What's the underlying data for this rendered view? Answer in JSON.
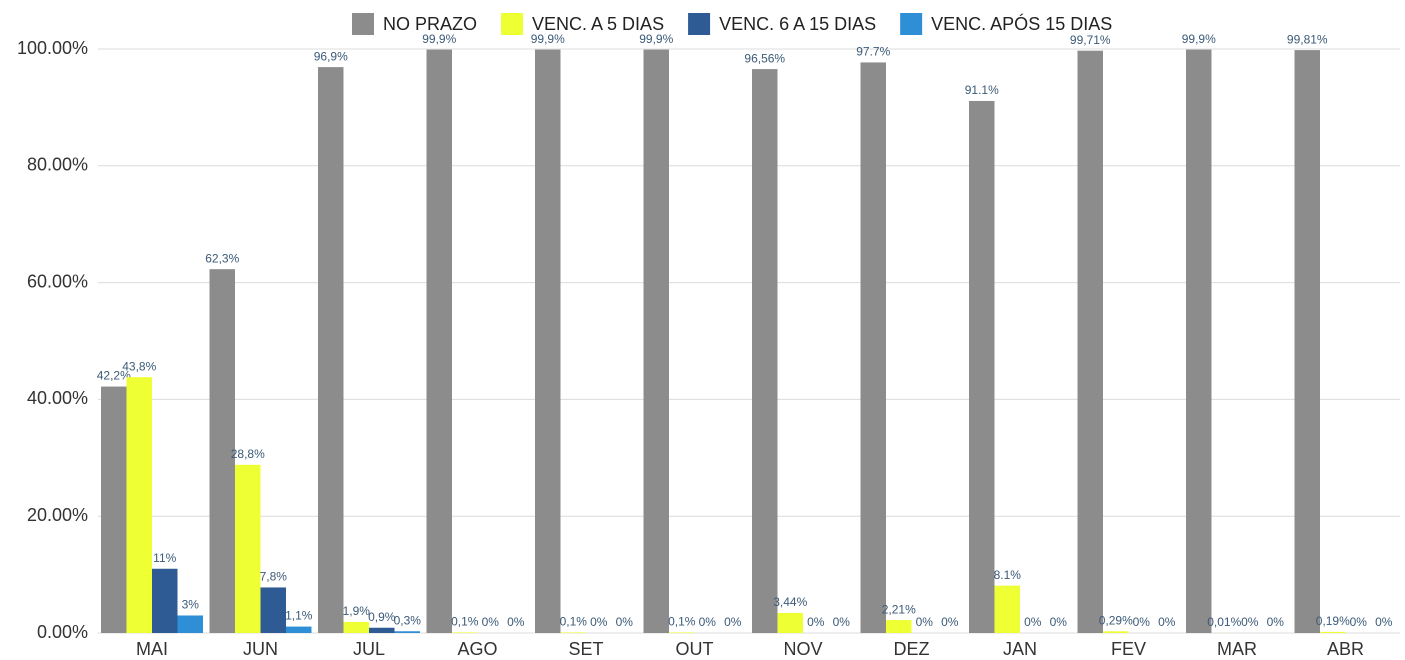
{
  "chart_data": {
    "type": "bar",
    "categories": [
      "MAI",
      "JUN",
      "JUL",
      "AGO",
      "SET",
      "OUT",
      "NOV",
      "DEZ",
      "JAN",
      "FEV",
      "MAR",
      "ABR"
    ],
    "series": [
      {
        "name": "NO PRAZO",
        "color": "#8c8c8c",
        "values": [
          42.2,
          62.3,
          96.9,
          99.9,
          99.9,
          99.9,
          96.56,
          97.7,
          91.1,
          99.71,
          99.9,
          99.81
        ],
        "value_labels": [
          "42,2%",
          "62,3%",
          "96,9%",
          "99,9%",
          "99,9%",
          "99,9%",
          "96,56%",
          "97.7%",
          "91.1%",
          "99,71%",
          "99,9%",
          "99,81%"
        ]
      },
      {
        "name": "VENC. A 5 DIAS",
        "color": "#eeff33",
        "values": [
          43.8,
          28.8,
          1.9,
          0.1,
          0.1,
          0.1,
          3.44,
          2.21,
          8.1,
          0.29,
          0.01,
          0.19
        ],
        "value_labels": [
          "43,8%",
          "28,8%",
          "1,9%",
          "0,1%",
          "0,1%",
          "0,1%",
          "3,44%",
          "2,21%",
          "8.1%",
          "0,29%",
          "0,01%",
          "0,19%"
        ]
      },
      {
        "name": "VENC. 6 A 15 DIAS",
        "color": "#2e5b94",
        "values": [
          11,
          7.8,
          0.9,
          0,
          0,
          0,
          0,
          0,
          0,
          0,
          0,
          0
        ],
        "value_labels": [
          "11%",
          "7,8%",
          "0,9%",
          "0%",
          "0%",
          "0%",
          "0%",
          "0%",
          "0%",
          "0%",
          "0%",
          "0%"
        ]
      },
      {
        "name": "VENC. APÓS 15 DIAS",
        "color": "#2f8fd6",
        "values": [
          3,
          1.1,
          0.3,
          0,
          0,
          0,
          0,
          0,
          0,
          0,
          0,
          0
        ],
        "value_labels": [
          "3%",
          "1,1%",
          "0,3%",
          "0%",
          "0%",
          "0%",
          "0%",
          "0%",
          "0%",
          "0%",
          "0%",
          "0%"
        ]
      }
    ],
    "ylim": [
      0,
      100
    ],
    "yticks": [
      {
        "value": 0,
        "label": "0.00%"
      },
      {
        "value": 20,
        "label": "20.00%"
      },
      {
        "value": 40,
        "label": "40.00%"
      },
      {
        "value": 60,
        "label": "60.00%"
      },
      {
        "value": 80,
        "label": "80.00%"
      },
      {
        "value": 100,
        "label": "100.00%"
      }
    ],
    "grid": true,
    "legend": "top"
  }
}
